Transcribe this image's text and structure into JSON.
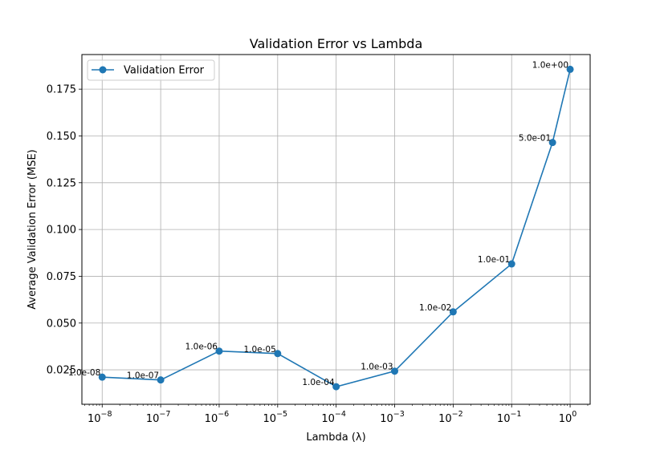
{
  "chart_data": {
    "type": "line",
    "title": "Validation Error vs Lambda",
    "xlabel": "Lambda (λ)",
    "ylabel": "Average Validation Error (MSE)",
    "x_scale": "log",
    "xlim": [
      4.5e-09,
      2.2
    ],
    "ylim": [
      0.0066,
      0.1935
    ],
    "grid": true,
    "legend_position": "top-left",
    "series": [
      {
        "name": "Validation Error",
        "color": "#1f77b4",
        "x": [
          1e-08,
          1e-07,
          1e-06,
          1e-05,
          0.0001,
          0.001,
          0.01,
          0.1,
          0.5,
          1.0
        ],
        "y": [
          0.0211,
          0.0196,
          0.035,
          0.0337,
          0.016,
          0.0243,
          0.056,
          0.0816,
          0.1465,
          0.1856
        ],
        "point_labels": [
          "1.0e-08",
          "1.0e-07",
          "1.0e-06",
          "1.0e-05",
          "1.0e-04",
          "1.0e-03",
          "1.0e-02",
          "1.0e-01",
          "5.0e-01",
          "1.0e+00"
        ]
      }
    ],
    "x_ticks": [
      {
        "value": 1e-08,
        "base": "10",
        "exp": "−8"
      },
      {
        "value": 1e-07,
        "base": "10",
        "exp": "−7"
      },
      {
        "value": 1e-06,
        "base": "10",
        "exp": "−6"
      },
      {
        "value": 1e-05,
        "base": "10",
        "exp": "−5"
      },
      {
        "value": 0.0001,
        "base": "10",
        "exp": "−4"
      },
      {
        "value": 0.001,
        "base": "10",
        "exp": "−3"
      },
      {
        "value": 0.01,
        "base": "10",
        "exp": "−2"
      },
      {
        "value": 0.1,
        "base": "10",
        "exp": "−1"
      },
      {
        "value": 1,
        "base": "10",
        "exp": "0"
      }
    ],
    "y_ticks": [
      {
        "value": 0.025,
        "label": "0.025"
      },
      {
        "value": 0.05,
        "label": "0.050"
      },
      {
        "value": 0.075,
        "label": "0.075"
      },
      {
        "value": 0.1,
        "label": "0.100"
      },
      {
        "value": 0.125,
        "label": "0.125"
      },
      {
        "value": 0.15,
        "label": "0.150"
      },
      {
        "value": 0.175,
        "label": "0.175"
      }
    ]
  }
}
